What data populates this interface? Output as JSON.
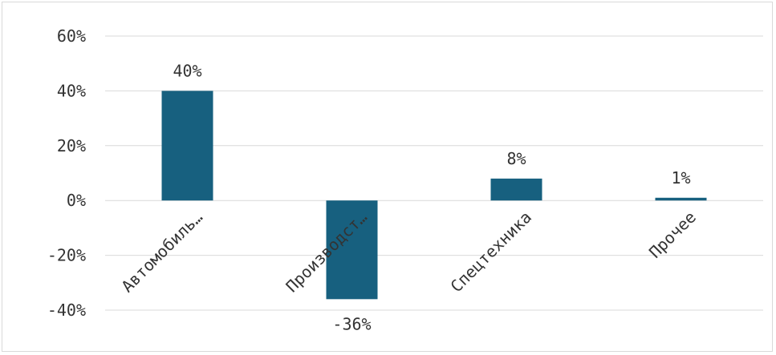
{
  "chart_data": {
    "type": "bar",
    "title": "",
    "xlabel": "",
    "ylabel": "",
    "categories": [
      "Автомобиль…",
      "Производст…",
      "Спецтехника",
      "Прочее"
    ],
    "values": [
      40,
      -36,
      8,
      1
    ],
    "data_labels": [
      "40%",
      "-36%",
      "8%",
      "1%"
    ],
    "ylim": [
      -40,
      60
    ],
    "yticks": [
      60,
      40,
      20,
      0,
      -20,
      -40
    ],
    "ytick_labels": [
      "60%",
      "40%",
      "20%",
      "0%",
      "-20%",
      "-40%"
    ],
    "grid": true,
    "legend": "none",
    "bar_color": "#17607f",
    "grid_color": "#d9d9d9"
  }
}
